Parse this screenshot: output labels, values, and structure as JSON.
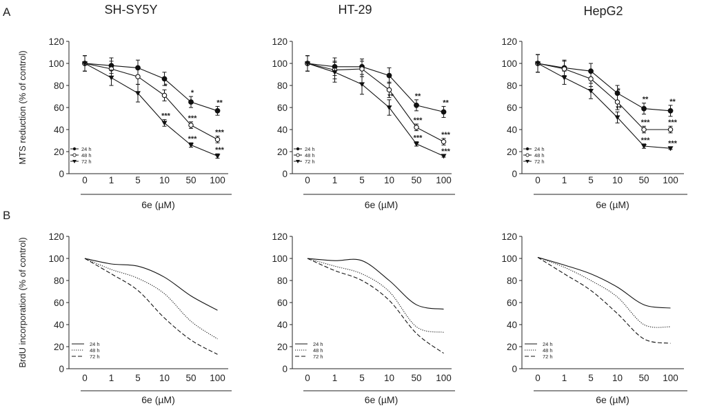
{
  "figure": {
    "panel_a_label": "A",
    "panel_b_label": "B",
    "column_titles": [
      "SH-SY5Y",
      "HT-29",
      "HepG2"
    ],
    "xlabel": "6e (µM)",
    "x_ticks": [
      "0",
      "1",
      "5",
      "10",
      "50",
      "100"
    ],
    "row_a_ylabel": "MTS reduction (% of control)",
    "row_b_ylabel": "BrdU incorporation (% of control)",
    "y_ticks": [
      "0",
      "20",
      "40",
      "60",
      "80",
      "100",
      "120"
    ],
    "legend": [
      "24 h",
      "48 h",
      "72 h"
    ],
    "legend_b": [
      "24 h",
      "48 h",
      "72 h"
    ]
  },
  "chart_data": [
    {
      "type": "line",
      "panel": "A",
      "title": "SH-SY5Y",
      "xlabel": "6e (µM)",
      "ylabel": "MTS reduction (% of control)",
      "categories": [
        "0",
        "1",
        "5",
        "10",
        "50",
        "100"
      ],
      "ylim": [
        0,
        120
      ],
      "series": [
        {
          "name": "24 h",
          "marker": "filled-circle",
          "values": [
            100,
            98,
            96,
            86,
            65,
            57
          ],
          "errors": [
            7,
            7,
            7,
            6,
            5,
            4
          ],
          "significance": [
            "",
            "",
            "",
            "",
            "*",
            "**"
          ]
        },
        {
          "name": "48 h",
          "marker": "open-circle",
          "values": [
            100,
            95,
            88,
            71,
            44,
            31
          ],
          "errors": [
            7,
            7,
            7,
            5,
            3,
            3
          ],
          "significance": [
            "",
            "",
            "",
            "*",
            "***",
            "***"
          ]
        },
        {
          "name": "72 h",
          "marker": "filled-triangle",
          "values": [
            100,
            87,
            73,
            46,
            26,
            16
          ],
          "errors": [
            7,
            7,
            8,
            3,
            2,
            2
          ],
          "significance": [
            "",
            "",
            "",
            "***",
            "***",
            "***"
          ]
        }
      ]
    },
    {
      "type": "line",
      "panel": "A",
      "title": "HT-29",
      "xlabel": "6e (µM)",
      "ylabel": "MTS reduction (% of control)",
      "categories": [
        "0",
        "1",
        "5",
        "10",
        "50",
        "100"
      ],
      "ylim": [
        0,
        120
      ],
      "series": [
        {
          "name": "24 h",
          "marker": "filled-circle",
          "values": [
            100,
            97,
            97,
            89,
            62,
            56
          ],
          "errors": [
            7,
            8,
            7,
            7,
            5,
            5
          ],
          "significance": [
            "",
            "",
            "",
            "",
            "**",
            "**"
          ]
        },
        {
          "name": "48 h",
          "marker": "open-circle",
          "values": [
            100,
            94,
            95,
            76,
            42,
            29
          ],
          "errors": [
            7,
            8,
            7,
            7,
            3,
            3
          ],
          "significance": [
            "",
            "",
            "",
            "",
            "***",
            "***"
          ]
        },
        {
          "name": "72 h",
          "marker": "filled-triangle",
          "values": [
            100,
            92,
            81,
            60,
            27,
            16
          ],
          "errors": [
            7,
            9,
            9,
            7,
            2,
            1
          ],
          "significance": [
            "",
            "",
            "",
            "**",
            "***",
            "***"
          ]
        }
      ]
    },
    {
      "type": "line",
      "panel": "A",
      "title": "HepG2",
      "xlabel": "6e (µM)",
      "ylabel": "MTS reduction (% of control)",
      "categories": [
        "0",
        "1",
        "5",
        "10",
        "50",
        "100"
      ],
      "ylim": [
        0,
        120
      ],
      "series": [
        {
          "name": "24 h",
          "marker": "filled-circle",
          "values": [
            100,
            96,
            93,
            73,
            59,
            57
          ],
          "errors": [
            8,
            7,
            7,
            7,
            5,
            5
          ],
          "significance": [
            "",
            "",
            "",
            "",
            "**",
            "**"
          ]
        },
        {
          "name": "48 h",
          "marker": "open-circle",
          "values": [
            100,
            95,
            86,
            65,
            40,
            40
          ],
          "errors": [
            8,
            7,
            7,
            7,
            3,
            3
          ],
          "significance": [
            "",
            "",
            "",
            "*",
            "***",
            "***"
          ]
        },
        {
          "name": "72 h",
          "marker": "filled-triangle",
          "values": [
            100,
            87,
            75,
            51,
            25,
            23
          ],
          "errors": [
            8,
            6,
            7,
            5,
            2,
            1
          ],
          "significance": [
            "",
            "",
            "",
            "**",
            "***",
            "***"
          ]
        }
      ]
    },
    {
      "type": "line",
      "panel": "B",
      "title": "SH-SY5Y",
      "xlabel": "6e (µM)",
      "ylabel": "BrdU incorporation (% of control)",
      "categories": [
        "0",
        "1",
        "5",
        "10",
        "50",
        "100"
      ],
      "ylim": [
        0,
        120
      ],
      "series": [
        {
          "name": "24 h",
          "style": "solid",
          "values": [
            100,
            95,
            93,
            83,
            66,
            53
          ]
        },
        {
          "name": "48 h",
          "style": "dotted",
          "values": [
            100,
            90,
            82,
            68,
            43,
            27
          ]
        },
        {
          "name": "72 h",
          "style": "dashed",
          "values": [
            100,
            86,
            71,
            46,
            26,
            13
          ]
        }
      ]
    },
    {
      "type": "line",
      "panel": "B",
      "title": "HT-29",
      "xlabel": "6e (µM)",
      "ylabel": "BrdU incorporation (% of control)",
      "categories": [
        "0",
        "1",
        "5",
        "10",
        "50",
        "100"
      ],
      "ylim": [
        0,
        120
      ],
      "series": [
        {
          "name": "24 h",
          "style": "solid",
          "values": [
            100,
            98,
            98,
            80,
            58,
            54
          ]
        },
        {
          "name": "48 h",
          "style": "dotted",
          "values": [
            100,
            93,
            86,
            70,
            38,
            33
          ]
        },
        {
          "name": "72 h",
          "style": "dashed",
          "values": [
            100,
            89,
            80,
            62,
            32,
            14
          ]
        }
      ]
    },
    {
      "type": "line",
      "panel": "B",
      "title": "HepG2",
      "xlabel": "6e (µM)",
      "ylabel": "BrdU incorporation (% of control)",
      "categories": [
        "0",
        "1",
        "5",
        "10",
        "50",
        "100"
      ],
      "ylim": [
        0,
        120
      ],
      "series": [
        {
          "name": "24 h",
          "style": "solid",
          "values": [
            101,
            94,
            86,
            74,
            58,
            55
          ]
        },
        {
          "name": "48 h",
          "style": "dotted",
          "values": [
            101,
            92,
            80,
            65,
            40,
            38
          ]
        },
        {
          "name": "72 h",
          "style": "dashed",
          "values": [
            101,
            86,
            71,
            50,
            27,
            23
          ]
        }
      ]
    }
  ]
}
